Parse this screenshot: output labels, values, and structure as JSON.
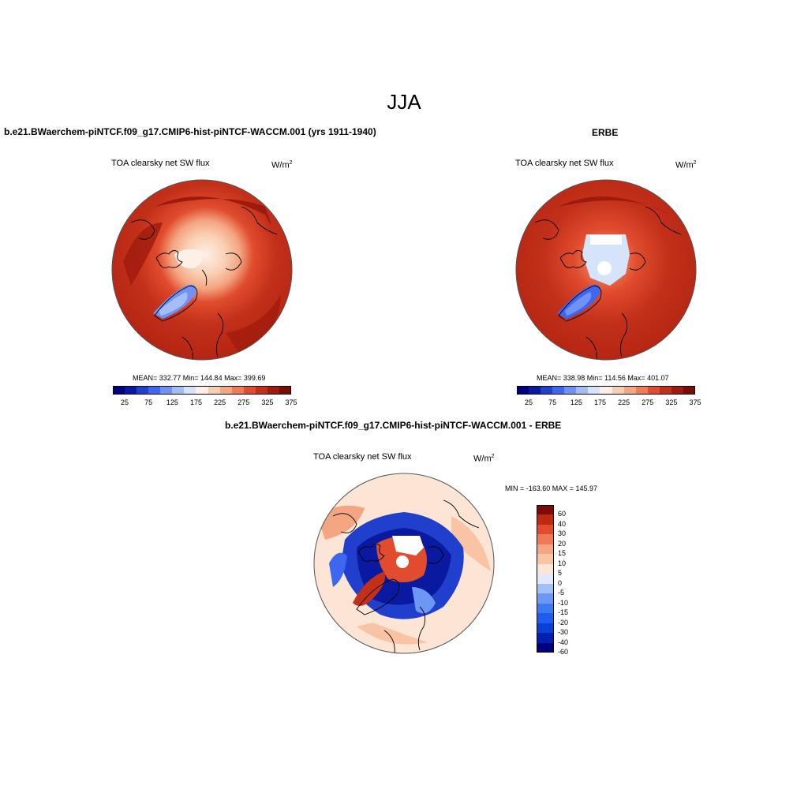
{
  "figure": {
    "title": "JJA",
    "top_left_title": "b.e21.BWaerchem-piNTCF.f09_g17.CMIP6-hist-piNTCF-WACCM.001 (yrs 1911-1940)",
    "top_right_title": "ERBE",
    "bottom_title": "b.e21.BWaerchem-piNTCF.f09_g17.CMIP6-hist-piNTCF-WACCM.001 - ERBE"
  },
  "panels": {
    "model": {
      "variable": "TOA clearsky net SW flux",
      "units_base": "W/m",
      "units_exp": "2",
      "stats": "MEAN= 332.77  Min= 144.84  Max= 399.69"
    },
    "obs": {
      "variable": "TOA clearsky net SW flux",
      "units_base": "W/m",
      "units_exp": "2",
      "stats": "MEAN= 338.98  Min= 114.56  Max= 401.07"
    },
    "diff": {
      "variable": "TOA clearsky net SW flux",
      "units_base": "W/m",
      "units_exp": "2",
      "stats": "MIN = -163.60 MAX = 145.97"
    }
  },
  "colorbars": {
    "abs_colors": [
      "#00007f",
      "#0a1aa0",
      "#1f3fcc",
      "#3d67f0",
      "#6e93f5",
      "#a4bdf7",
      "#d6e4fb",
      "#fdf0e6",
      "#f9cfb3",
      "#f4a582",
      "#ef7a57",
      "#e04c2d",
      "#c3301a",
      "#9e1a0c",
      "#7a0d05"
    ],
    "abs_ticks": [
      "25",
      "75",
      "125",
      "175",
      "225",
      "275",
      "325",
      "375"
    ],
    "diff_colors": [
      "#00007f",
      "#001fb0",
      "#0a3fd8",
      "#1f5cf0",
      "#3d79f3",
      "#6e97f5",
      "#a4bef7",
      "#dfe9fb",
      "#fde5d6",
      "#f8c4a3",
      "#f4a582",
      "#ef7a57",
      "#e04c2d",
      "#c0280f",
      "#800a05"
    ],
    "diff_ticks": [
      "-60",
      "-40",
      "-30",
      "-20",
      "-15",
      "-10",
      "-5",
      "0",
      "5",
      "10",
      "15",
      "20",
      "30",
      "40",
      "60"
    ]
  }
}
